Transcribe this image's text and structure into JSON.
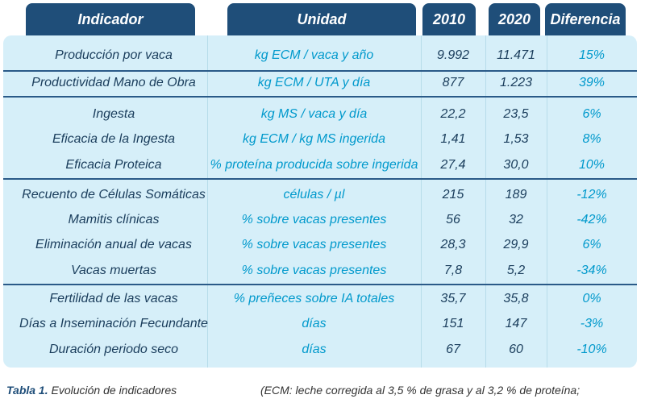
{
  "header": {
    "indicador": "Indicador",
    "unidad": "Unidad",
    "y2010": "2010",
    "y2020": "2020",
    "diferencia": "Diferencia"
  },
  "rows": [
    {
      "indicador": "Producción por vaca",
      "unidad": "kg ECM / vaca y año",
      "v2010": "9.992",
      "v2020": "11.471",
      "diferencia": "15%"
    },
    {
      "indicador": "Productividad Mano de Obra",
      "unidad": "kg ECM / UTA y día",
      "v2010": "877",
      "v2020": "1.223",
      "diferencia": "39%"
    },
    {
      "indicador": "Ingesta",
      "unidad": "kg MS / vaca y día",
      "v2010": "22,2",
      "v2020": "23,5",
      "diferencia": "6%"
    },
    {
      "indicador": "Eficacia de la Ingesta",
      "unidad": "kg ECM / kg MS ingerida",
      "v2010": "1,41",
      "v2020": "1,53",
      "diferencia": "8%"
    },
    {
      "indicador": "Eficacia Proteica",
      "unidad": "% proteína producida sobre ingerida",
      "v2010": "27,4",
      "v2020": "30,0",
      "diferencia": "10%"
    },
    {
      "indicador": "Recuento de Células Somáticas",
      "unidad": "células / µl",
      "v2010": "215",
      "v2020": "189",
      "diferencia": "-12%"
    },
    {
      "indicador": "Mamitis clínicas",
      "unidad": "% sobre vacas presentes",
      "v2010": "56",
      "v2020": "32",
      "diferencia": "-42%"
    },
    {
      "indicador": "Eliminación anual de vacas",
      "unidad": "% sobre vacas presentes",
      "v2010": "28,3",
      "v2020": "29,9",
      "diferencia": "6%"
    },
    {
      "indicador": "Vacas muertas",
      "unidad": "% sobre vacas presentes",
      "v2010": "7,8",
      "v2020": "5,2",
      "diferencia": "-34%"
    },
    {
      "indicador": "Fertilidad de las vacas",
      "unidad": "% preñeces sobre IA totales",
      "v2010": "35,7",
      "v2020": "35,8",
      "diferencia": "0%"
    },
    {
      "indicador": "Días a Inseminación Fecundante",
      "unidad": "días",
      "v2010": "151",
      "v2020": "147",
      "diferencia": "-3%"
    },
    {
      "indicador": "Duración periodo seco",
      "unidad": "días",
      "v2010": "67",
      "v2020": "60",
      "diferencia": "-10%"
    }
  ],
  "caption": {
    "label": "Tabla 1.",
    "text": "Evolución de indicadores",
    "note": "(ECM: leche corregida al 3,5 % de grasa y al 3,2 % de proteína;"
  }
}
